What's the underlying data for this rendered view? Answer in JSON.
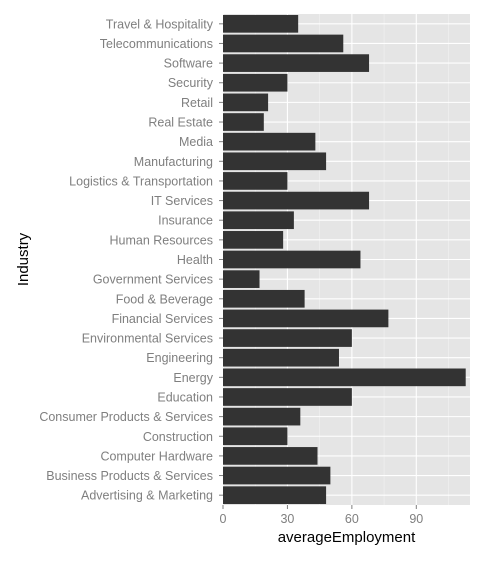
{
  "colors": {
    "panel_background": "#e5e5e5",
    "grid_major": "#ffffff",
    "grid_minor": "#f2f2f2",
    "bar_fill": "#333333",
    "tick_label": "#7f7f7f",
    "axis_title": "#000000"
  },
  "chart_data": {
    "type": "bar",
    "orientation": "horizontal",
    "xlabel": "averageEmployment",
    "ylabel": "Industry",
    "xlim": [
      0,
      115
    ],
    "xticks": [
      0,
      30,
      60,
      90
    ],
    "grid": true,
    "legend": "none",
    "categories": [
      "Advertising & Marketing",
      "Business Products & Services",
      "Computer Hardware",
      "Construction",
      "Consumer Products & Services",
      "Education",
      "Energy",
      "Engineering",
      "Environmental Services",
      "Financial Services",
      "Food & Beverage",
      "Government Services",
      "Health",
      "Human Resources",
      "Insurance",
      "IT Services",
      "Logistics & Transportation",
      "Manufacturing",
      "Media",
      "Real Estate",
      "Retail",
      "Security",
      "Software",
      "Telecommunications",
      "Travel & Hospitality"
    ],
    "values": [
      48,
      50,
      44,
      30,
      36,
      60,
      113,
      54,
      60,
      77,
      38,
      17,
      64,
      28,
      33,
      68,
      30,
      48,
      43,
      19,
      21,
      30,
      68,
      56,
      35
    ]
  }
}
